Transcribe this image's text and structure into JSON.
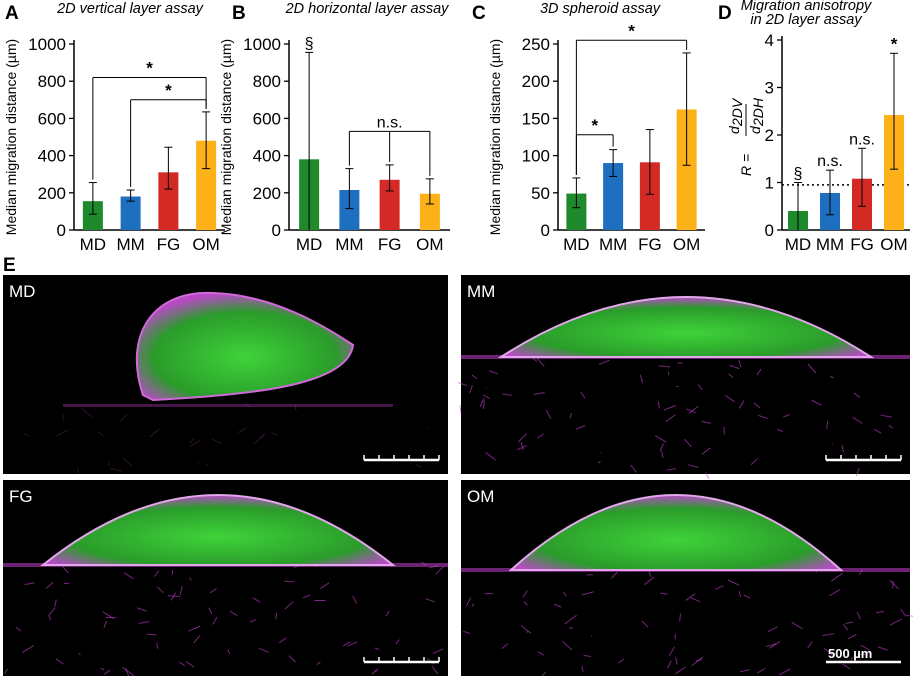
{
  "chart_data": [
    {
      "panel": "A",
      "type": "bar",
      "title": "2D vertical layer assay",
      "ylabel": "Median migration distance (µm)",
      "ylim": [
        0,
        1000
      ],
      "yticks": [
        0,
        200,
        400,
        600,
        800,
        1000
      ],
      "categories": [
        "MD",
        "MM",
        "FG",
        "OM"
      ],
      "colors": [
        "#1e8a2c",
        "#1f6fc1",
        "#d42a26",
        "#fbb117"
      ],
      "values": [
        155,
        180,
        310,
        480
      ],
      "err_low": [
        85,
        155,
        220,
        330
      ],
      "err_high": [
        255,
        215,
        445,
        635
      ],
      "brackets": [
        {
          "from": 0,
          "to": 3,
          "level": 820,
          "label": "*"
        },
        {
          "from": 1,
          "to": 3,
          "level": 700,
          "label": "*"
        }
      ],
      "annotations": [],
      "refline": null
    },
    {
      "panel": "B",
      "type": "bar",
      "title": "2D horizontal layer assay",
      "ylabel": "Median migration distance (µm)",
      "ylim": [
        0,
        1000
      ],
      "yticks": [
        0,
        200,
        400,
        600,
        800,
        1000
      ],
      "categories": [
        "MD",
        "MM",
        "FG",
        "OM"
      ],
      "colors": [
        "#1e8a2c",
        "#1f6fc1",
        "#d42a26",
        "#fbb117"
      ],
      "values": [
        380,
        215,
        270,
        195
      ],
      "err_low": [
        0,
        115,
        210,
        140
      ],
      "err_high": [
        955,
        330,
        350,
        275
      ],
      "brackets": [
        {
          "from": 1,
          "to": 3,
          "level": 530,
          "label": "n.s.",
          "stems": [
            1,
            2,
            3
          ]
        }
      ],
      "annotations": [
        {
          "cat": 0,
          "value": 955,
          "label": "§"
        }
      ],
      "refline": null
    },
    {
      "panel": "C",
      "type": "bar",
      "title": "3D spheroid assay",
      "ylabel": "Median migration distance (µm)",
      "ylim": [
        0,
        250
      ],
      "yticks": [
        0,
        50,
        100,
        150,
        200,
        250
      ],
      "categories": [
        "MD",
        "MM",
        "FG",
        "OM"
      ],
      "colors": [
        "#1e8a2c",
        "#1f6fc1",
        "#d42a26",
        "#fbb117"
      ],
      "values": [
        49,
        90,
        91,
        162
      ],
      "err_low": [
        30,
        72,
        48,
        87
      ],
      "err_high": [
        70,
        108,
        135,
        238
      ],
      "brackets": [
        {
          "from": 0,
          "to": 3,
          "level": 255,
          "label": "*"
        },
        {
          "from": 0,
          "to": 1,
          "level": 128,
          "label": "*"
        }
      ],
      "annotations": [],
      "refline": null
    },
    {
      "panel": "D",
      "type": "bar",
      "title_lines": [
        "Migration anisotropy",
        "in 2D layer assay"
      ],
      "ylabel_text": "R =",
      "ylabel_frac_num": "d",
      "ylabel_frac_num_sub": "2DV",
      "ylabel_frac_den": "d",
      "ylabel_frac_den_sub": "2DH",
      "ylim": [
        0,
        4
      ],
      "yticks": [
        0,
        1,
        2,
        3,
        4
      ],
      "categories": [
        "MD",
        "MM",
        "FG",
        "OM"
      ],
      "colors": [
        "#1e8a2c",
        "#1f6fc1",
        "#d42a26",
        "#fbb117"
      ],
      "values": [
        0.4,
        0.78,
        1.08,
        2.42
      ],
      "err_low": [
        0.0,
        0.32,
        0.5,
        1.28
      ],
      "err_high": [
        1.0,
        1.26,
        1.72,
        3.72
      ],
      "brackets": [],
      "annotations": [
        {
          "cat": 0,
          "value": 1.0,
          "label": "§"
        },
        {
          "cat": 1,
          "value": 1.26,
          "label": "n.s."
        },
        {
          "cat": 2,
          "value": 1.72,
          "label": "n.s."
        },
        {
          "cat": 3,
          "value": 3.72,
          "label": "*"
        }
      ],
      "refline": 0.95
    }
  ],
  "panel_e": {
    "letter": "E",
    "images": [
      {
        "label": "MD",
        "scale_text": ""
      },
      {
        "label": "MM",
        "scale_text": ""
      },
      {
        "label": "FG",
        "scale_text": ""
      },
      {
        "label": "OM",
        "scale_text": "500 µm"
      }
    ]
  },
  "panel_letters": [
    "A",
    "B",
    "C",
    "D"
  ]
}
